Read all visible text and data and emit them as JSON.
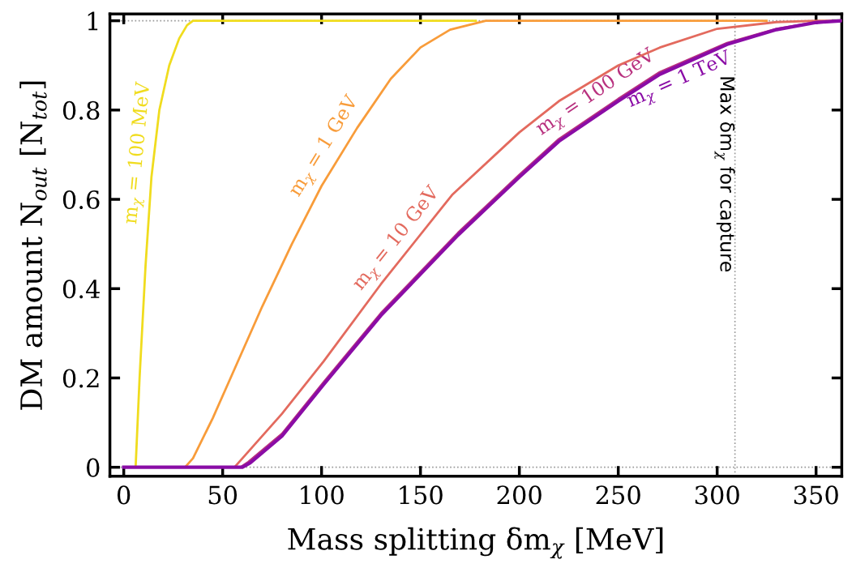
{
  "chart_data": {
    "type": "line",
    "xlabel": "Mass splitting δm$_{χ}$ [MeV]",
    "ylabel": "DM amount N$_{out}$ [N$_{tot}$]",
    "xlim": [
      -7,
      363
    ],
    "ylim": [
      -0.02,
      1.015
    ],
    "xticks": [
      0,
      50,
      100,
      150,
      200,
      250,
      300,
      350
    ],
    "yticks": [
      0,
      0.2,
      0.4,
      0.6,
      0.8,
      1
    ],
    "grid": false,
    "legend": false,
    "marker": "none",
    "line_style": "solid",
    "series": [
      {
        "color": "#f0dc1e",
        "x": [
          0,
          6,
          8,
          11,
          14,
          18,
          23,
          28,
          32,
          35,
          178
        ],
        "values": [
          0,
          0,
          0.2,
          0.45,
          0.65,
          0.8,
          0.9,
          0.96,
          0.99,
          1,
          1
        ]
      },
      {
        "color": "#f89c3a",
        "x": [
          0,
          31,
          35,
          45,
          55,
          70,
          85,
          100,
          118,
          135,
          150,
          165,
          183,
          325
        ],
        "values": [
          0,
          0,
          0.02,
          0.11,
          0.21,
          0.36,
          0.5,
          0.63,
          0.76,
          0.87,
          0.94,
          0.98,
          1,
          1
        ]
      },
      {
        "color": "#e36a5e",
        "x": [
          0,
          56,
          62,
          80,
          101,
          130,
          166,
          200,
          220,
          250,
          271,
          300,
          330,
          350,
          363
        ],
        "values": [
          0,
          0,
          0.03,
          0.12,
          0.237,
          0.41,
          0.61,
          0.75,
          0.82,
          0.9,
          0.94,
          0.982,
          0.997,
          1,
          1
        ]
      },
      {
        "color": "#b8317f",
        "x": [
          0,
          59,
          63,
          80,
          101,
          130,
          169,
          200,
          220,
          250,
          271,
          305,
          330,
          350,
          363
        ],
        "values": [
          0,
          0,
          0.012,
          0.075,
          0.19,
          0.345,
          0.525,
          0.655,
          0.735,
          0.825,
          0.885,
          0.95,
          0.982,
          0.997,
          1
        ]
      },
      {
        "color": "#8a0ca6",
        "x": [
          0,
          60,
          64,
          80,
          101,
          130,
          169,
          200,
          220,
          250,
          271,
          305,
          330,
          350,
          363
        ],
        "values": [
          0,
          0,
          0.01,
          0.07,
          0.185,
          0.34,
          0.52,
          0.65,
          0.73,
          0.82,
          0.88,
          0.947,
          0.98,
          0.996,
          1
        ]
      }
    ],
    "ref_lines": [
      {
        "axis": "y",
        "value": 0,
        "color": "#999999",
        "line_style": "dotted"
      },
      {
        "axis": "y",
        "value": 1,
        "color": "#999999",
        "line_style": "dotted"
      },
      {
        "axis": "x",
        "value": 309,
        "color": "#999999",
        "line_style": "dotted",
        "label": "Max δm$_{χ}$ for capture"
      }
    ],
    "annotations": [
      {
        "text": "m$_{χ}$ = 100 MeV",
        "x": 15,
        "y": 0.7
      },
      {
        "text": "m$_{χ}$ = 1 GeV",
        "x": 108,
        "y": 0.7
      },
      {
        "text": "m$_{χ}$ = 10 GeV",
        "x": 144,
        "y": 0.49
      },
      {
        "text": "m$_{χ}$ = 100 GeV",
        "x": 243,
        "y": 0.81
      },
      {
        "text": "m$_{χ}$ = 1 TeV",
        "x": 278,
        "y": 0.895
      }
    ]
  }
}
